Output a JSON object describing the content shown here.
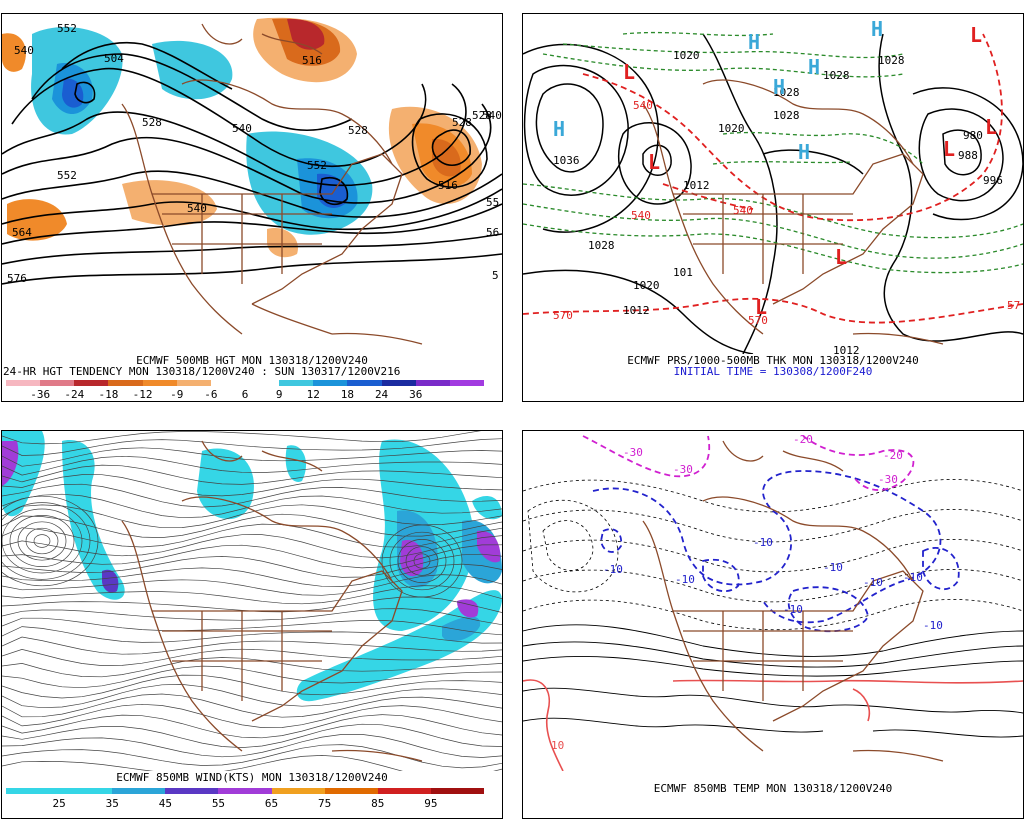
{
  "panels": {
    "p1": {
      "title": "ECMWF 500MB HGT MON 130318/1200V240",
      "subtitle": "24-HR HGT TENDENCY MON 130318/1200V240 : SUN 130317/1200V216",
      "scale_colors": [
        "#f6b7c0",
        "#e07a88",
        "#b8282c",
        "#d96a1c",
        "#f08a2a",
        "#f4b070",
        "#ffffff",
        "#ffffff",
        "#3fc7df",
        "#1b93da",
        "#1a5ed1",
        "#1b2ba0",
        "#7a2bc9",
        "#a23be0"
      ],
      "scale_labels": [
        "-36",
        "-24",
        "-18",
        "-12",
        "-9",
        "-6",
        "6",
        "9",
        "12",
        "18",
        "24",
        "36"
      ],
      "contour_labels": [
        "540",
        "504",
        "528",
        "516",
        "528",
        "552",
        "540",
        "528",
        "540",
        "564",
        "576",
        "552",
        "552",
        "528",
        "540",
        "516",
        "55",
        "56",
        "5",
        "540",
        "516"
      ]
    },
    "p2": {
      "title": "ECMWF PRS/1000-500MB THK MON 130318/1200V240",
      "subtitle": "INITIAL TIME = 130308/1200F240",
      "pressure_labels": [
        "1036",
        "1020",
        "1028",
        "1012",
        "1012",
        "1028",
        "1020",
        "1028",
        "1028",
        "1020",
        "101",
        "1012",
        "988",
        "980",
        "996",
        "1028"
      ],
      "thickness_labels": [
        "540",
        "570",
        "540",
        "57",
        "570",
        "540",
        "570"
      ],
      "high_marker": "H",
      "low_marker": "L"
    },
    "p3": {
      "title": "ECMWF 850MB WIND(KTS) MON 130318/1200V240",
      "scale_colors": [
        "#35d6e6",
        "#35d6e6",
        "#2ba5d8",
        "#5a38c4",
        "#a13cd8",
        "#f0a020",
        "#e06a00",
        "#d02020",
        "#a01010"
      ],
      "scale_labels": [
        "25",
        "35",
        "45",
        "55",
        "65",
        "75",
        "85",
        "95"
      ]
    },
    "p4": {
      "title": "ECMWF 850MB TEMP MON 130318/1200V240",
      "temp_labels": [
        "-10",
        "-10",
        "-10",
        "-10",
        "-10",
        "-10",
        "-10",
        "-10",
        "-30",
        "-30",
        "-30",
        "-20",
        "-20",
        "10"
      ]
    },
    "colors": {
      "coast": "#8b4a2a",
      "contour": "#000000",
      "thickness_cold": "#e02020",
      "thickness_green": "#2a8a2a",
      "high": "#3aa8d8",
      "low": "#e02020",
      "temp_cold": "#2222cc",
      "temp_very_cold": "#d020d0",
      "temp_warm": "#e85050"
    }
  }
}
